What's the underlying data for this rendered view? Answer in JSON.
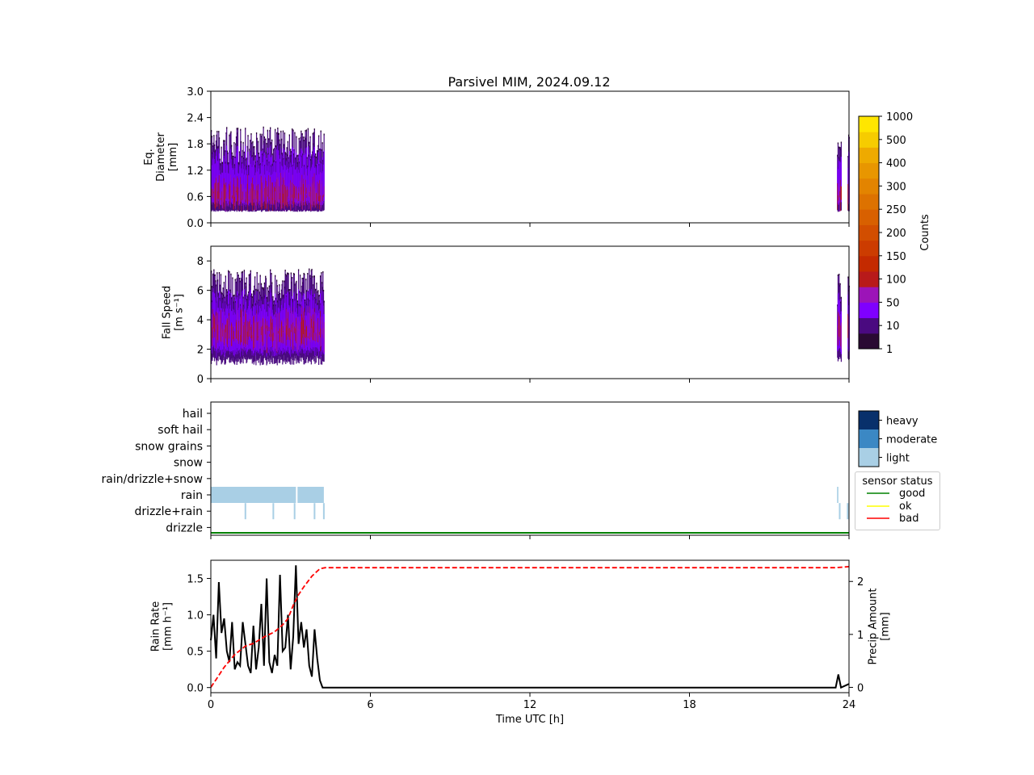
{
  "title": "Parsivel MIM, 2024.09.12",
  "xaxis": {
    "label": "Time UTC [h]",
    "ticks": [
      "0",
      "6",
      "12",
      "18",
      "24"
    ],
    "lim": [
      0,
      24
    ]
  },
  "colors": {
    "counts_scale": [
      "#2a0a33",
      "#4a0a80",
      "#7f00ff",
      "#9c14b8",
      "#b81a1a",
      "#c42a00",
      "#cc3c00",
      "#d24e00",
      "#d86000",
      "#dd7200",
      "#e38400",
      "#e89600",
      "#eeaa00",
      "#f6cc00",
      "#ffe600"
    ],
    "intensity": {
      "heavy": "#08306b",
      "moderate": "#3b88c4",
      "light": "#a9cfe5"
    },
    "status": {
      "good": "#008000",
      "ok": "#ffff00",
      "bad": "#ff0000"
    }
  },
  "chart_data": [
    {
      "type": "heatmap",
      "name": "diameter",
      "ylabel_lines": [
        "Eq.",
        "Diameter",
        "[mm]"
      ],
      "ylim": [
        0,
        3.0
      ],
      "yticks": [
        "0.0",
        "0.6",
        "1.2",
        "1.8",
        "2.4",
        "3.0"
      ],
      "active_periods_h": [
        [
          0,
          4.25
        ],
        [
          23.55,
          23.7
        ],
        [
          23.95,
          24
        ]
      ]
    },
    {
      "type": "heatmap",
      "name": "fall_speed",
      "ylabel_lines": [
        "Fall Speed",
        "[m s⁻¹]"
      ],
      "ylim": [
        0,
        9
      ],
      "yticks": [
        "0",
        "2",
        "4",
        "6",
        "8"
      ],
      "active_periods_h": [
        [
          0,
          4.25
        ],
        [
          23.55,
          23.7
        ],
        [
          23.95,
          24
        ]
      ]
    },
    {
      "type": "table",
      "name": "precip_type",
      "categories": [
        "hail",
        "soft hail",
        "snow grains",
        "snow",
        "rain/drizzle+snow",
        "rain",
        "drizzle+rain",
        "drizzle"
      ],
      "rain_light_periods_h": [
        [
          0,
          3.2
        ],
        [
          3.26,
          4.25
        ],
        [
          23.55,
          23.6
        ]
      ],
      "drizzle_rain_marks_h": [
        1.3,
        2.35,
        3.15,
        3.9,
        4.25,
        23.65,
        23.95
      ],
      "sensor_status": "good"
    },
    {
      "type": "line",
      "name": "rain_rate",
      "ylabel_lines": [
        "Rain Rate",
        "[mm h⁻¹]"
      ],
      "ylabel2_lines": [
        "Precip Amount",
        "[mm]"
      ],
      "ylim": [
        -0.07,
        1.75
      ],
      "yticks": [
        "0.0",
        "0.5",
        "1.0",
        "1.5"
      ],
      "y2lim": [
        -0.1,
        2.4
      ],
      "y2ticks": [
        "0",
        "1",
        "2"
      ],
      "series": [
        {
          "x": [
            0,
            0.1,
            0.2,
            0.3,
            0.4,
            0.5,
            0.6,
            0.7,
            0.8,
            0.9,
            1.0,
            1.1,
            1.2,
            1.3,
            1.4,
            1.5,
            1.6,
            1.7,
            1.8,
            1.9,
            2.0,
            2.1,
            2.2,
            2.3,
            2.4,
            2.5,
            2.6,
            2.7,
            2.8,
            2.9,
            3.0,
            3.1,
            3.2,
            3.3,
            3.4,
            3.5,
            3.6,
            3.7,
            3.8,
            3.9,
            4.0,
            4.1,
            4.2,
            4.3,
            23.5,
            23.6,
            23.7,
            24
          ],
          "values": [
            0.65,
            1.0,
            0.4,
            1.45,
            0.75,
            0.95,
            0.5,
            0.35,
            0.9,
            0.25,
            0.35,
            0.3,
            0.9,
            0.6,
            0.3,
            0.2,
            0.85,
            0.25,
            0.55,
            1.15,
            0.3,
            1.5,
            0.35,
            0.2,
            0.45,
            0.3,
            1.55,
            0.5,
            0.55,
            1.0,
            0.25,
            0.7,
            1.68,
            0.6,
            0.9,
            0.55,
            0.8,
            0.3,
            0.15,
            0.8,
            0.4,
            0.1,
            0.0,
            0.0,
            0.0,
            0.18,
            0.0,
            0.05
          ],
          "color": "#000000"
        },
        {
          "x": [
            0,
            0.2,
            0.5,
            0.9,
            1.3,
            1.6,
            2.0,
            2.4,
            2.7,
            2.9,
            3.1,
            3.3,
            3.5,
            3.8,
            4.1,
            4.3,
            23.5,
            24
          ],
          "values": [
            0.0,
            0.15,
            0.38,
            0.62,
            0.78,
            0.83,
            0.95,
            1.05,
            1.18,
            1.3,
            1.55,
            1.75,
            1.9,
            2.1,
            2.24,
            2.26,
            2.26,
            2.28
          ],
          "color": "#ff0000"
        }
      ]
    }
  ],
  "colorbar_counts": {
    "label": "Counts",
    "ticks": [
      "1",
      "10",
      "50",
      "100",
      "150",
      "200",
      "250",
      "300",
      "400",
      "500",
      "1000"
    ]
  },
  "colorbar_intensity": {
    "ticks": [
      "heavy",
      "moderate",
      "light"
    ]
  },
  "legend": {
    "title": "sensor status",
    "items": [
      "good",
      "ok",
      "bad"
    ]
  }
}
